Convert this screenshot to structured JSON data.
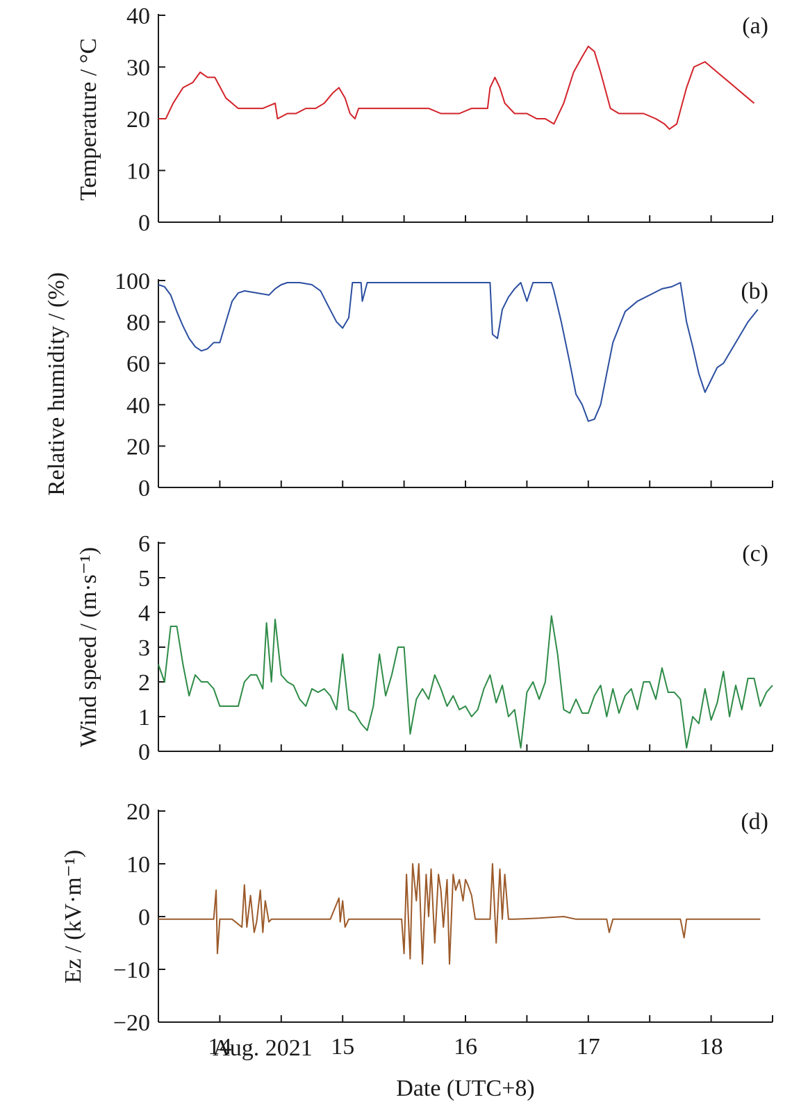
{
  "figure": {
    "xlabel": "Date (UTC+8)",
    "date_note": "Aug. 2021",
    "xticks": [
      14,
      15,
      16,
      17,
      18
    ],
    "xrange": [
      13.5,
      18.5
    ]
  },
  "chart_data": [
    {
      "type": "line",
      "panel": "(a)",
      "ylabel": "Temperature / °C",
      "ylim": [
        0,
        40
      ],
      "yticks": [
        0,
        10,
        20,
        30,
        40
      ],
      "color": "#d2232a",
      "series": [
        {
          "x": [
            13.5,
            13.56,
            13.62,
            13.7,
            13.78,
            13.84,
            13.9,
            13.96,
            14.05,
            14.15,
            14.25,
            14.35,
            14.45,
            14.47,
            14.55,
            14.62,
            14.7,
            14.78,
            14.85,
            14.92,
            14.97,
            15.02,
            15.06,
            15.1,
            15.13,
            15.18,
            15.3,
            15.5,
            15.7,
            15.8,
            15.95,
            16.05,
            16.1,
            16.18,
            16.2,
            16.24,
            16.28,
            16.32,
            16.4,
            16.5,
            16.58,
            16.65,
            16.72,
            16.8,
            16.88,
            16.95,
            17.0,
            17.05,
            17.1,
            17.18,
            17.25,
            17.35,
            17.45,
            17.55,
            17.62,
            17.66,
            17.72,
            17.8,
            17.86,
            17.95,
            18.05,
            18.15,
            18.25,
            18.35
          ],
          "y": [
            20,
            20,
            23,
            26,
            27,
            29,
            28,
            28,
            24,
            22,
            22,
            22,
            23,
            20,
            21,
            21,
            22,
            22,
            23,
            25,
            26,
            24,
            21,
            20,
            22,
            22,
            22,
            22,
            22,
            21,
            21,
            22,
            22,
            22,
            26,
            28,
            26,
            23,
            21,
            21,
            20,
            20,
            19,
            23,
            29,
            32,
            34,
            33,
            29,
            22,
            21,
            21,
            21,
            20,
            19,
            18,
            19,
            26,
            30,
            31,
            29,
            27,
            25,
            23
          ]
        }
      ]
    },
    {
      "type": "line",
      "panel": "(b)",
      "ylabel": "Relative humidity / (%)",
      "ylim": [
        0,
        100
      ],
      "yticks": [
        0,
        20,
        40,
        60,
        80,
        100
      ],
      "color": "#2b4ea0",
      "series": [
        {
          "x": [
            13.5,
            13.55,
            13.6,
            13.65,
            13.7,
            13.75,
            13.8,
            13.85,
            13.9,
            13.95,
            14.0,
            14.05,
            14.1,
            14.15,
            14.2,
            14.3,
            14.4,
            14.45,
            14.5,
            14.55,
            14.65,
            14.75,
            14.82,
            14.88,
            14.95,
            15.0,
            15.05,
            15.08,
            15.15,
            15.16,
            15.2,
            15.4,
            15.6,
            15.8,
            16.0,
            16.15,
            16.2,
            16.22,
            16.26,
            16.3,
            16.35,
            16.4,
            16.45,
            16.5,
            16.55,
            16.6,
            16.7,
            16.72,
            16.78,
            16.85,
            16.9,
            16.95,
            17.0,
            17.05,
            17.1,
            17.15,
            17.2,
            17.3,
            17.4,
            17.5,
            17.6,
            17.68,
            17.75,
            17.8,
            17.85,
            17.9,
            17.95,
            18.0,
            18.05,
            18.1,
            18.2,
            18.3,
            18.38
          ],
          "y": [
            98,
            97,
            93,
            85,
            78,
            72,
            68,
            66,
            67,
            70,
            70,
            80,
            90,
            94,
            95,
            94,
            93,
            96,
            98,
            99,
            99,
            98,
            95,
            88,
            80,
            77,
            82,
            99,
            99,
            90,
            99,
            99,
            99,
            99,
            99,
            99,
            99,
            74,
            72,
            86,
            92,
            96,
            99,
            90,
            99,
            99,
            99,
            95,
            80,
            60,
            45,
            40,
            32,
            33,
            40,
            55,
            70,
            85,
            90,
            93,
            96,
            97,
            99,
            80,
            68,
            55,
            46,
            52,
            58,
            60,
            70,
            80,
            86
          ]
        }
      ]
    },
    {
      "type": "line",
      "panel": "(c)",
      "ylabel": "Wind speed / (m·s⁻¹)",
      "ylim": [
        0,
        6
      ],
      "yticks": [
        0,
        1,
        2,
        3,
        4,
        5,
        6
      ],
      "color": "#2e8b47",
      "series": [
        {
          "x": [
            13.5,
            13.55,
            13.6,
            13.65,
            13.7,
            13.75,
            13.8,
            13.85,
            13.9,
            13.95,
            14.0,
            14.05,
            14.1,
            14.15,
            14.2,
            14.25,
            14.3,
            14.35,
            14.38,
            14.42,
            14.45,
            14.5,
            14.55,
            14.6,
            14.65,
            14.7,
            14.75,
            14.8,
            14.85,
            14.9,
            14.95,
            15.0,
            15.05,
            15.1,
            15.15,
            15.2,
            15.25,
            15.3,
            15.35,
            15.4,
            15.45,
            15.5,
            15.55,
            15.6,
            15.65,
            15.7,
            15.75,
            15.8,
            15.85,
            15.9,
            15.95,
            16.0,
            16.05,
            16.1,
            16.15,
            16.2,
            16.25,
            16.3,
            16.35,
            16.4,
            16.45,
            16.5,
            16.55,
            16.6,
            16.65,
            16.7,
            16.75,
            16.8,
            16.85,
            16.9,
            16.95,
            17.0,
            17.05,
            17.1,
            17.15,
            17.2,
            17.25,
            17.3,
            17.35,
            17.4,
            17.45,
            17.5,
            17.55,
            17.6,
            17.65,
            17.7,
            17.75,
            17.8,
            17.85,
            17.9,
            17.95,
            18.0,
            18.05,
            18.1,
            18.15,
            18.2,
            18.25,
            18.3,
            18.35,
            18.4,
            18.45,
            18.5
          ],
          "y": [
            2.5,
            2.0,
            3.6,
            3.6,
            2.5,
            1.6,
            2.2,
            2.0,
            2.0,
            1.8,
            1.3,
            1.3,
            1.3,
            1.3,
            2.0,
            2.2,
            2.2,
            1.8,
            3.7,
            2.0,
            3.8,
            2.2,
            2.0,
            1.9,
            1.5,
            1.3,
            1.8,
            1.7,
            1.8,
            1.6,
            1.2,
            2.8,
            1.2,
            1.1,
            0.8,
            0.6,
            1.3,
            2.8,
            1.6,
            2.2,
            3.0,
            3.0,
            0.5,
            1.5,
            1.8,
            1.5,
            2.2,
            1.8,
            1.3,
            1.6,
            1.2,
            1.3,
            1.0,
            1.2,
            1.8,
            2.2,
            1.4,
            1.9,
            1.0,
            1.2,
            0.1,
            1.7,
            2.0,
            1.5,
            2.0,
            3.9,
            2.8,
            1.2,
            1.1,
            1.5,
            1.1,
            1.1,
            1.6,
            1.9,
            1.0,
            1.8,
            1.1,
            1.6,
            1.8,
            1.2,
            2.0,
            2.0,
            1.5,
            2.4,
            1.7,
            1.7,
            1.5,
            0.1,
            1.0,
            0.8,
            1.8,
            0.9,
            1.4,
            2.3,
            1.0,
            1.9,
            1.2,
            2.1,
            2.1,
            1.3,
            1.7,
            1.9
          ]
        }
      ]
    },
    {
      "type": "line",
      "panel": "(d)",
      "ylabel": "Ez / (kV·m⁻¹)",
      "ylim": [
        -20,
        20
      ],
      "yticks": [
        -20,
        -10,
        0,
        10,
        20
      ],
      "color": "#9c5a2a",
      "series": [
        {
          "x": [
            13.5,
            13.6,
            13.7,
            13.85,
            13.95,
            13.97,
            13.98,
            14.0,
            14.02,
            14.1,
            14.18,
            14.2,
            14.22,
            14.25,
            14.28,
            14.3,
            14.33,
            14.35,
            14.37,
            14.4,
            14.42,
            14.5,
            14.7,
            14.9,
            14.97,
            14.98,
            15.0,
            15.02,
            15.05,
            15.07,
            15.1,
            15.3,
            15.48,
            15.5,
            15.52,
            15.55,
            15.57,
            15.6,
            15.62,
            15.65,
            15.68,
            15.7,
            15.72,
            15.75,
            15.78,
            15.8,
            15.82,
            15.85,
            15.87,
            15.9,
            15.92,
            15.95,
            15.98,
            16.0,
            16.02,
            16.05,
            16.08,
            16.1,
            16.15,
            16.2,
            16.22,
            16.25,
            16.28,
            16.3,
            16.32,
            16.35,
            16.4,
            16.6,
            16.8,
            16.9,
            17.0,
            17.1,
            17.15,
            17.17,
            17.2,
            17.4,
            17.6,
            17.75,
            17.78,
            17.8,
            17.9,
            18.1,
            18.3,
            18.4
          ],
          "y": [
            -0.5,
            -0.5,
            -0.5,
            -0.5,
            -0.5,
            5,
            -7,
            -0.5,
            -0.5,
            -0.5,
            -2,
            6,
            -2,
            4,
            -3,
            -1,
            5,
            -3,
            3,
            -1,
            -0.5,
            -0.5,
            -0.5,
            -0.5,
            3.5,
            -1,
            3,
            -2,
            -0.5,
            -0.5,
            -0.5,
            -0.5,
            -0.5,
            -7,
            8,
            -8,
            10,
            3,
            10,
            -9,
            8,
            0,
            9,
            -5,
            8,
            5,
            -2,
            7,
            -9,
            8,
            5,
            7,
            3,
            7,
            6,
            4,
            -0.5,
            -0.5,
            -0.5,
            -0.5,
            10,
            -5,
            9,
            -0.5,
            8,
            -0.5,
            -0.5,
            -0.3,
            0,
            -0.5,
            -0.5,
            -0.5,
            -0.5,
            -3,
            -0.5,
            -0.5,
            -0.5,
            -0.5,
            -4,
            -0.5,
            -0.5,
            -0.5,
            -0.5,
            -0.5
          ]
        }
      ]
    }
  ]
}
